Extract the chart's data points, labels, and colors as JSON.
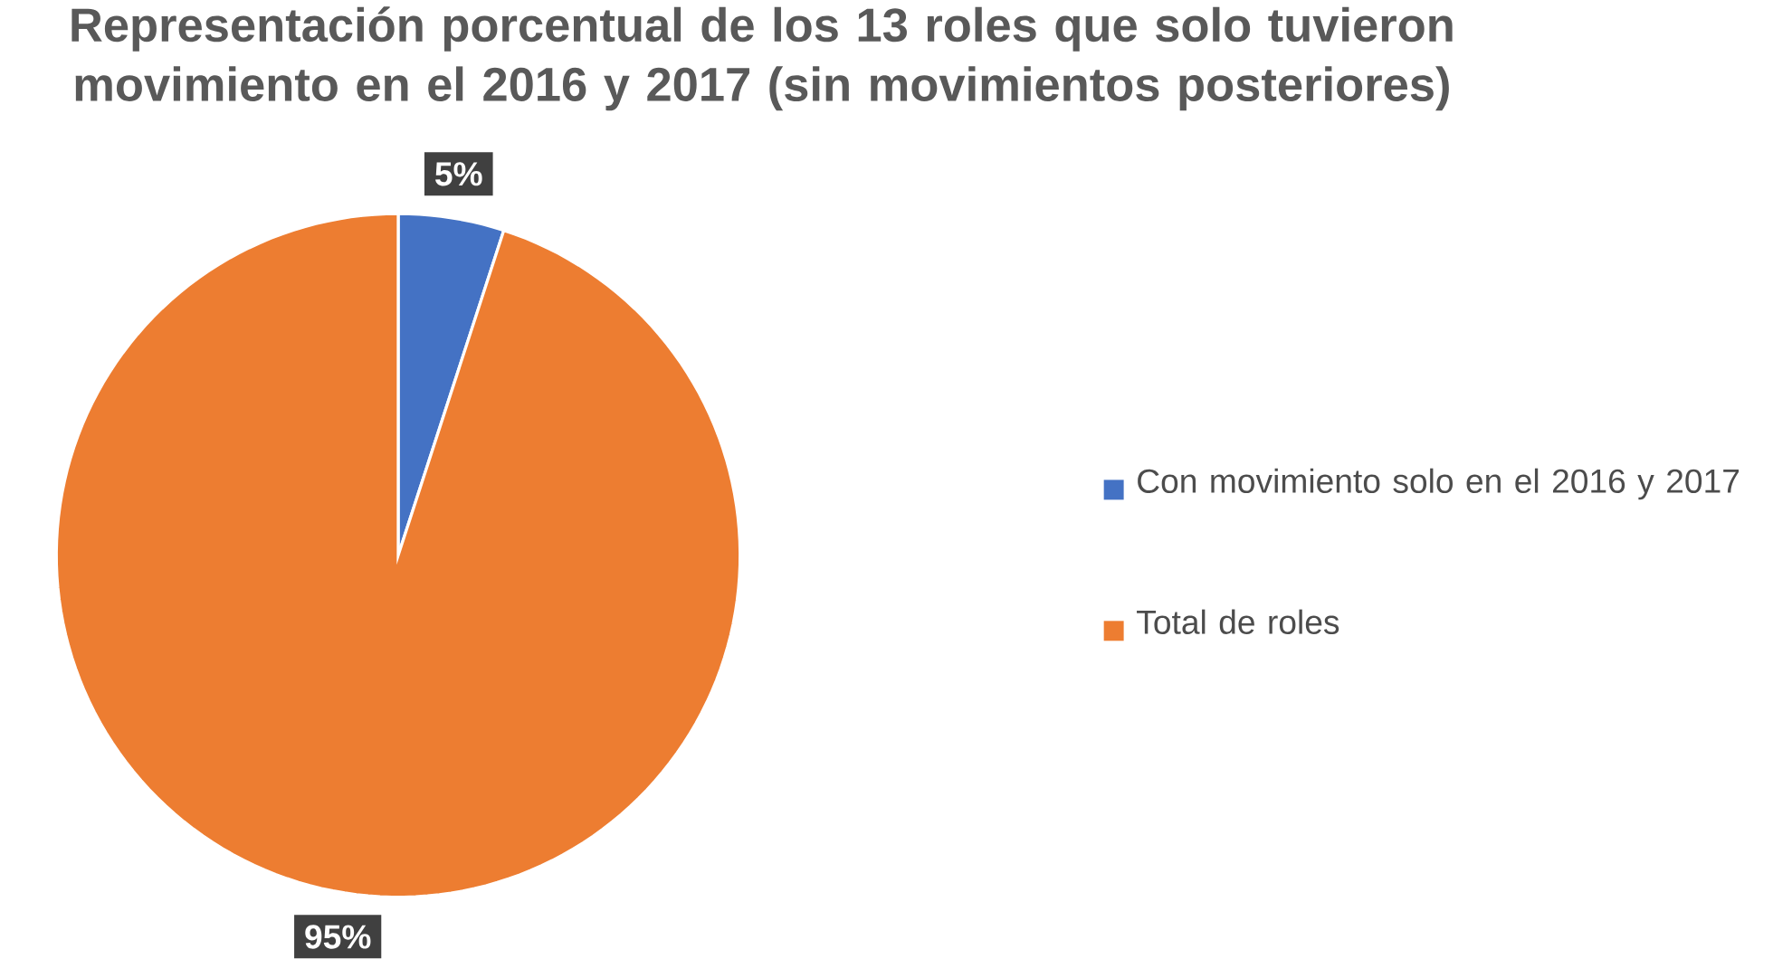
{
  "chart_data": {
    "type": "pie",
    "title": "Representación porcentual de los 13 roles que solo tuvieron movimiento en el 2016 y 2017 (sin movimientos posteriores)",
    "categories": [
      "Con movimiento solo en el 2016 y 2017",
      "Total de roles"
    ],
    "values": [
      5,
      95
    ],
    "colors": [
      "#4472c4",
      "#ed7d31"
    ],
    "value_labels": [
      "5%",
      "95%"
    ],
    "legend": "right"
  }
}
